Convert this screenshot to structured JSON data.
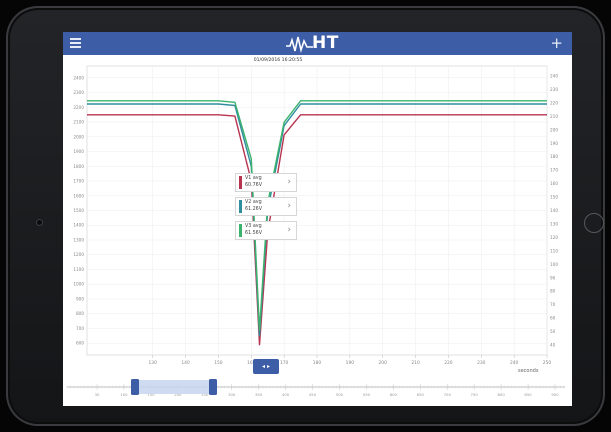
{
  "app": {
    "logo_text": "HT",
    "timestamp": "01/09/2016 16:20:55",
    "colors": {
      "appbar": "#3d5da6",
      "v1": "#b7344f",
      "v2": "#2f8d9e",
      "v3": "#3cb36c"
    }
  },
  "toolbar": {
    "menu_icon": "hamburger-menu-icon",
    "add_icon": "plus-icon",
    "add_label": "+"
  },
  "legend": [
    {
      "name": "V1 avg",
      "value": "60.76V"
    },
    {
      "name": "V2 avg",
      "value": "61.26V"
    },
    {
      "name": "V3 avg",
      "value": "61.56V"
    }
  ],
  "legend_arrow": "›",
  "nav_button_label": "◂ ▸",
  "chart_data": {
    "type": "line",
    "xlabel": "seconds",
    "ylabel": "",
    "grid": true,
    "x_ticks": [
      "130",
      "140",
      "150",
      "160",
      "170",
      "180",
      "190",
      "200",
      "210",
      "220",
      "230",
      "240",
      "250"
    ],
    "y_left_ticks": [
      "2400",
      "2300",
      "2200",
      "2100",
      "2000",
      "1900",
      "1800",
      "1700",
      "1600",
      "1500",
      "1400",
      "1300",
      "1200",
      "1100",
      "1000",
      "900",
      "800",
      "700",
      "600"
    ],
    "y_right_ticks": [
      "240",
      "230",
      "220",
      "210",
      "200",
      "190",
      "180",
      "170",
      "160",
      "150",
      "140",
      "130",
      "120",
      "110",
      "100",
      "90",
      "80",
      "70",
      "60",
      "50",
      "40"
    ],
    "x": [
      110,
      150,
      155,
      160,
      162.5,
      165,
      170,
      175,
      250
    ],
    "series": [
      {
        "name": "V1 avg",
        "values": [
          2149,
          2149,
          2140,
          1700,
          590,
          1350,
          2013,
          2149,
          2149
        ]
      },
      {
        "name": "V2 avg",
        "values": [
          2222,
          2222,
          2212,
          1800,
          650,
          1500,
          2075,
          2222,
          2222
        ]
      },
      {
        "name": "V3 avg",
        "values": [
          2244,
          2244,
          2234,
          1850,
          690,
          1550,
          2098,
          2244,
          2244
        ]
      }
    ],
    "navigator": {
      "ticks": [
        "30",
        "100",
        "150",
        "200",
        "250",
        "300",
        "350",
        "400",
        "450",
        "500",
        "550",
        "600",
        "650",
        "700",
        "750",
        "800",
        "850",
        "900"
      ],
      "range": [
        110,
        250
      ]
    }
  }
}
